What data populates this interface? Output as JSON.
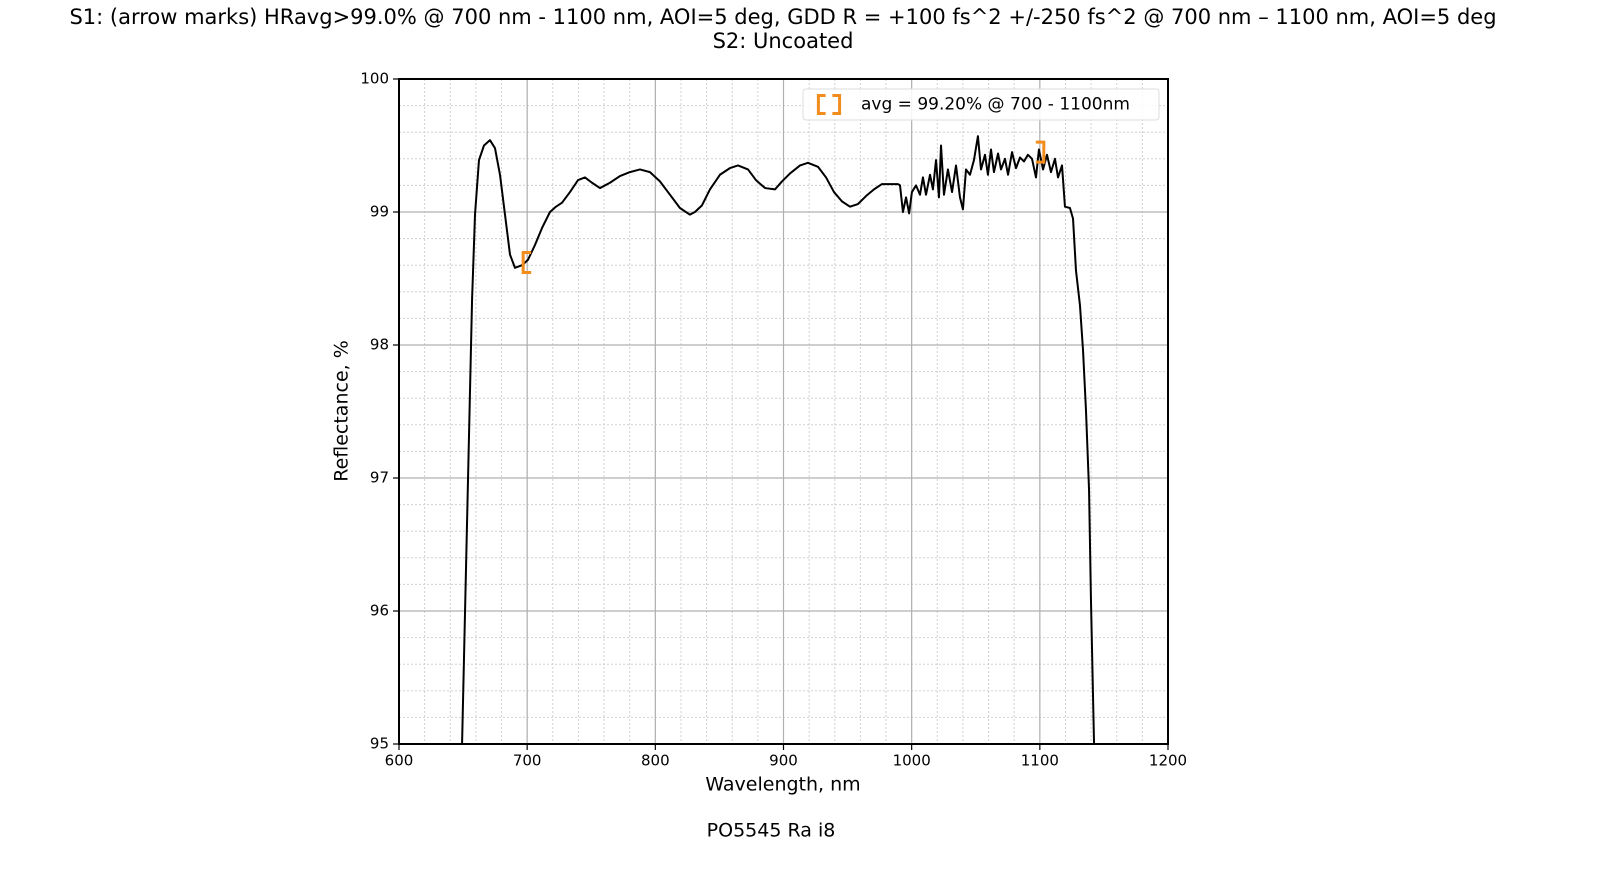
{
  "chart_data": {
    "type": "line",
    "title": "S1: (arrow marks) HRavg>99.0% @ 700 nm - 1100 nm, AOI=5 deg, GDD R = +100 fs^2 +/-250 fs^2 @ 700 nm – 1100 nm, AOI=5 deg",
    "subtitle": "S2: Uncoated",
    "footer": "PO5545 Ra i8",
    "x_label": "Wavelength, nm",
    "y_label": "Reflectance, %",
    "xlim": [
      600,
      1200
    ],
    "ylim": [
      95,
      100
    ],
    "xticks": [
      600,
      700,
      800,
      900,
      1000,
      1100,
      1200
    ],
    "yticks": [
      95,
      96,
      97,
      98,
      99,
      100
    ],
    "grid": true,
    "minor_grid": true,
    "xminor": 20,
    "yminor": 0.2,
    "legend": "upper right",
    "series": [
      {
        "color": "#000000",
        "x": [
          649.2,
          657.0,
          659.3,
          662.4,
          666.3,
          671.0,
          674.9,
          678.8,
          682.7,
          686.6,
          690.5,
          696.0,
          700.6,
          706.0,
          711.6,
          717.8,
          722.5,
          727.2,
          733.4,
          739.7,
          745.1,
          750.6,
          756.8,
          764.6,
          772.4,
          780.2,
          788.0,
          795.8,
          803.6,
          811.4,
          819.2,
          827.0,
          830.9,
          836.4,
          842.6,
          850.4,
          858.2,
          864.5,
          872.3,
          878.5,
          885.6,
          893.4,
          898.8,
          905.1,
          912.9,
          919.1,
          926.9,
          933.2,
          939.4,
          945.6,
          951.9,
          958.1,
          964.4,
          970.6,
          976.8,
          983.1,
          989.3,
          990.9,
          993.2,
          995.6,
          998.0,
          1000.2,
          1003.4,
          1006.5,
          1008.8,
          1011.2,
          1014.3,
          1016.6,
          1019.0,
          1021.3,
          1022.9,
          1025.2,
          1028.3,
          1031.5,
          1034.6,
          1037.7,
          1040.0,
          1042.4,
          1045.5,
          1048.6,
          1051.7,
          1054.1,
          1057.2,
          1059.5,
          1061.9,
          1064.2,
          1067.4,
          1069.7,
          1072.8,
          1075.2,
          1078.3,
          1081.4,
          1084.5,
          1087.6,
          1090.7,
          1093.9,
          1097.0,
          1099.3,
          1102.5,
          1105.6,
          1108.7,
          1111.8,
          1114.2,
          1117.3,
          1119.6,
          1123.5,
          1125.9,
          1128.2,
          1131.3,
          1133.7,
          1136.0,
          1138.4,
          1139.9,
          1142.3
        ],
        "values": [
          95.0,
          98.34,
          98.98,
          99.39,
          99.5,
          99.54,
          99.48,
          99.28,
          98.98,
          98.68,
          98.58,
          98.6,
          98.64,
          98.75,
          98.88,
          99.0,
          99.04,
          99.07,
          99.15,
          99.24,
          99.26,
          99.22,
          99.18,
          99.22,
          99.27,
          99.3,
          99.32,
          99.3,
          99.23,
          99.13,
          99.03,
          98.98,
          99.0,
          99.05,
          99.17,
          99.28,
          99.33,
          99.35,
          99.32,
          99.24,
          99.18,
          99.17,
          99.23,
          99.29,
          99.35,
          99.37,
          99.34,
          99.26,
          99.15,
          99.08,
          99.04,
          99.06,
          99.12,
          99.17,
          99.21,
          99.21,
          99.21,
          99.2,
          99.0,
          99.11,
          98.99,
          99.15,
          99.2,
          99.13,
          99.26,
          99.13,
          99.28,
          99.17,
          99.39,
          99.11,
          99.5,
          99.13,
          99.32,
          99.15,
          99.35,
          99.11,
          99.02,
          99.32,
          99.28,
          99.39,
          99.57,
          99.32,
          99.43,
          99.28,
          99.47,
          99.3,
          99.44,
          99.32,
          99.4,
          99.28,
          99.45,
          99.33,
          99.41,
          99.38,
          99.43,
          99.4,
          99.26,
          99.47,
          99.32,
          99.43,
          99.3,
          99.4,
          99.26,
          99.35,
          99.04,
          99.03,
          98.95,
          98.56,
          98.3,
          97.96,
          97.51,
          96.91,
          96.08,
          95.0
        ]
      },
      {
        "name": "avg = 99.20% @ 700 - 1100nm",
        "color": "#f28c1c",
        "x": [
          700,
          1100
        ],
        "values": [
          98.62,
          99.45
        ]
      }
    ]
  }
}
